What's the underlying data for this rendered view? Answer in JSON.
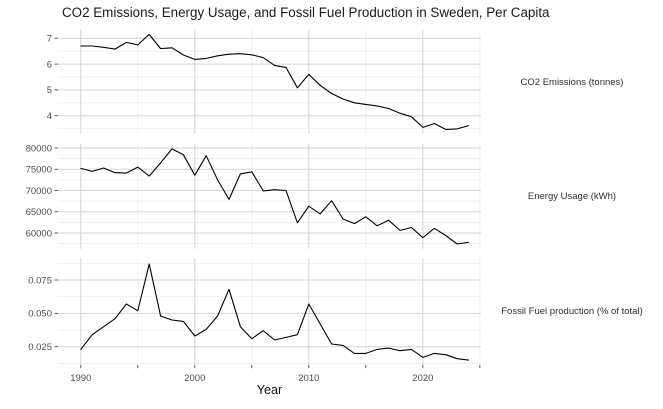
{
  "title": "CO2 Emissions, Energy Usage, and Fossil Fuel Production in Sweden, Per Capita",
  "colors": {
    "background": "#FFFFFF",
    "line": "#000000",
    "grid_major": "#D3D3D3",
    "grid_minor": "#E9E9E9",
    "tick_label": "#4D4D4D",
    "axis_tick": "#333333",
    "title": "#1A1A1A",
    "strip_label": "#2E2E2E"
  },
  "x_axis": {
    "label": "Year",
    "xlim": [
      1988,
      2025.1
    ],
    "ticks": [
      1990,
      2000,
      2010,
      2020
    ],
    "tick_labels": [
      "1990",
      "2000",
      "2010",
      "2020"
    ],
    "minor_ticks": [
      1995,
      2005,
      2015,
      2025
    ]
  },
  "chart_data": [
    {
      "type": "line",
      "title": "CO2 Emissions (tonnes)",
      "x": [
        1990,
        1991,
        1992,
        1993,
        1994,
        1995,
        1996,
        1997,
        1998,
        1999,
        2000,
        2001,
        2002,
        2003,
        2004,
        2005,
        2006,
        2007,
        2008,
        2009,
        2010,
        2011,
        2012,
        2013,
        2014,
        2015,
        2016,
        2017,
        2018,
        2019,
        2020,
        2021,
        2022,
        2023,
        2024
      ],
      "values": [
        6.7,
        6.7,
        6.65,
        6.58,
        6.84,
        6.74,
        7.15,
        6.6,
        6.63,
        6.35,
        6.18,
        6.22,
        6.32,
        6.38,
        6.4,
        6.36,
        6.25,
        5.95,
        5.87,
        5.08,
        5.6,
        5.18,
        4.86,
        4.65,
        4.5,
        4.44,
        4.38,
        4.28,
        4.1,
        3.96,
        3.55,
        3.7,
        3.47,
        3.49,
        3.62
      ],
      "ylim": [
        3.29,
        7.33
      ],
      "y_ticks": [
        4,
        5,
        6,
        7
      ],
      "y_tick_labels": [
        "4",
        "5",
        "6",
        "7"
      ],
      "y_minor": [
        3.5,
        4.5,
        5.5,
        6.5
      ]
    },
    {
      "type": "line",
      "title": "Energy Usage (kWh)",
      "x": [
        1990,
        1991,
        1992,
        1993,
        1994,
        1995,
        1996,
        1997,
        1998,
        1999,
        2000,
        2001,
        2002,
        2003,
        2004,
        2005,
        2006,
        2007,
        2008,
        2009,
        2010,
        2011,
        2012,
        2013,
        2014,
        2015,
        2016,
        2017,
        2018,
        2019,
        2020,
        2021,
        2022,
        2023,
        2024
      ],
      "values": [
        75200,
        74500,
        75300,
        74200,
        74100,
        75500,
        73400,
        76500,
        79800,
        78400,
        73600,
        78200,
        72500,
        67900,
        73900,
        74400,
        69900,
        70200,
        70000,
        62400,
        66300,
        64500,
        67600,
        63300,
        62200,
        63800,
        61700,
        63000,
        60600,
        61300,
        58900,
        61100,
        59400,
        57400,
        57800
      ],
      "ylim": [
        56280,
        80920
      ],
      "y_ticks": [
        60000,
        65000,
        70000,
        75000,
        80000
      ],
      "y_tick_labels": [
        "60000",
        "65000",
        "70000",
        "75000",
        "80000"
      ],
      "y_minor": [
        57500,
        62500,
        67500,
        72500,
        77500
      ]
    },
    {
      "type": "line",
      "title": "Fossil Fuel production (% of total)",
      "x": [
        1990,
        1991,
        1992,
        1993,
        1994,
        1995,
        1996,
        1997,
        1998,
        1999,
        2000,
        2001,
        2002,
        2003,
        2004,
        2005,
        2006,
        2007,
        2008,
        2009,
        2010,
        2011,
        2012,
        2013,
        2014,
        2015,
        2016,
        2017,
        2018,
        2019,
        2020,
        2021,
        2022,
        2023,
        2024
      ],
      "values": [
        0.023,
        0.034,
        0.04,
        0.046,
        0.057,
        0.052,
        0.087,
        0.048,
        0.045,
        0.044,
        0.033,
        0.038,
        0.048,
        0.068,
        0.04,
        0.031,
        0.037,
        0.03,
        0.032,
        0.034,
        0.057,
        0.042,
        0.027,
        0.026,
        0.02,
        0.02,
        0.023,
        0.024,
        0.022,
        0.023,
        0.017,
        0.02,
        0.019,
        0.016,
        0.015
      ],
      "ylim": [
        0.0113,
        0.0917
      ],
      "y_ticks": [
        0.025,
        0.05,
        0.075
      ],
      "y_tick_labels": [
        "0.025",
        "0.050",
        "0.075"
      ],
      "y_minor": [
        0.0125,
        0.0375,
        0.0625,
        0.0875
      ]
    }
  ]
}
